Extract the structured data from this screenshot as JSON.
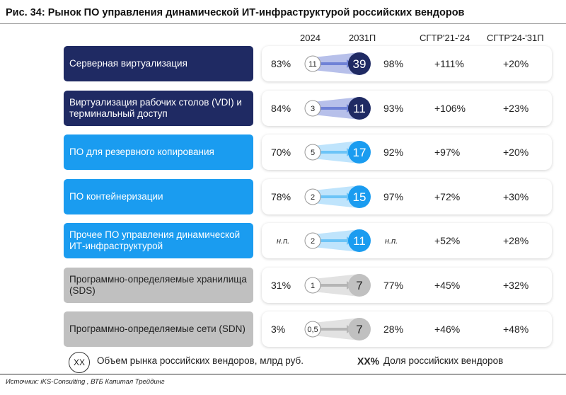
{
  "title": "Рис. 34: Рынок ПО управления динамической ИТ-инфраструктурой российских вендоров",
  "headers": {
    "y2024": "2024",
    "y2031": "2031П",
    "cagr1": "СГТР'21-'24",
    "cagr2": "СГТР'24-'31П"
  },
  "colors": {
    "navy": "#1f2a63",
    "blue": "#1a9cf0",
    "gray": "#c0c0c0"
  },
  "chart_data": {
    "type": "table",
    "rows": [
      {
        "label": "Серверная виртуализация",
        "color": "navy",
        "share2024": "83%",
        "market2024": "11",
        "market2031": "39",
        "share2031": "98%",
        "cagr2124": "+111%",
        "cagr2431": "+20%"
      },
      {
        "label": "Виртуализация рабочих столов (VDI) и терминальный доступ",
        "color": "navy",
        "share2024": "84%",
        "market2024": "3",
        "market2031": "11",
        "share2031": "93%",
        "cagr2124": "+106%",
        "cagr2431": "+23%"
      },
      {
        "label": "ПО для резервного копирования",
        "color": "blue",
        "share2024": "70%",
        "market2024": "5",
        "market2031": "17",
        "share2031": "92%",
        "cagr2124": "+97%",
        "cagr2431": "+20%"
      },
      {
        "label": "ПО контейнеризации",
        "color": "blue",
        "share2024": "78%",
        "market2024": "2",
        "market2031": "15",
        "share2031": "97%",
        "cagr2124": "+72%",
        "cagr2431": "+30%"
      },
      {
        "label": "Прочее ПО управления динамической ИТ-инфраструктурой",
        "color": "blue",
        "share2024": "н.п.",
        "market2024": "2",
        "market2031": "11",
        "share2031": "н.п.",
        "cagr2124": "+52%",
        "cagr2431": "+28%"
      },
      {
        "label": "Программно-определяемые хранилища (SDS)",
        "color": "gray",
        "share2024": "31%",
        "market2024": "1",
        "market2031": "7",
        "share2031": "77%",
        "cagr2124": "+45%",
        "cagr2431": "+32%"
      },
      {
        "label": "Программно-определяемые сети (SDN)",
        "color": "gray",
        "share2024": "3%",
        "market2024": "0,5",
        "market2031": "7",
        "share2031": "28%",
        "cagr2124": "+46%",
        "cagr2431": "+48%"
      }
    ]
  },
  "legend": {
    "circle": "XX",
    "circle_text": "Объем рынка российских вендоров, млрд руб.",
    "pct": "XX%",
    "pct_text": "Доля российских вендоров"
  },
  "source": "Источник: iKS-Consulting , ВТБ Капитал Трейдинг"
}
